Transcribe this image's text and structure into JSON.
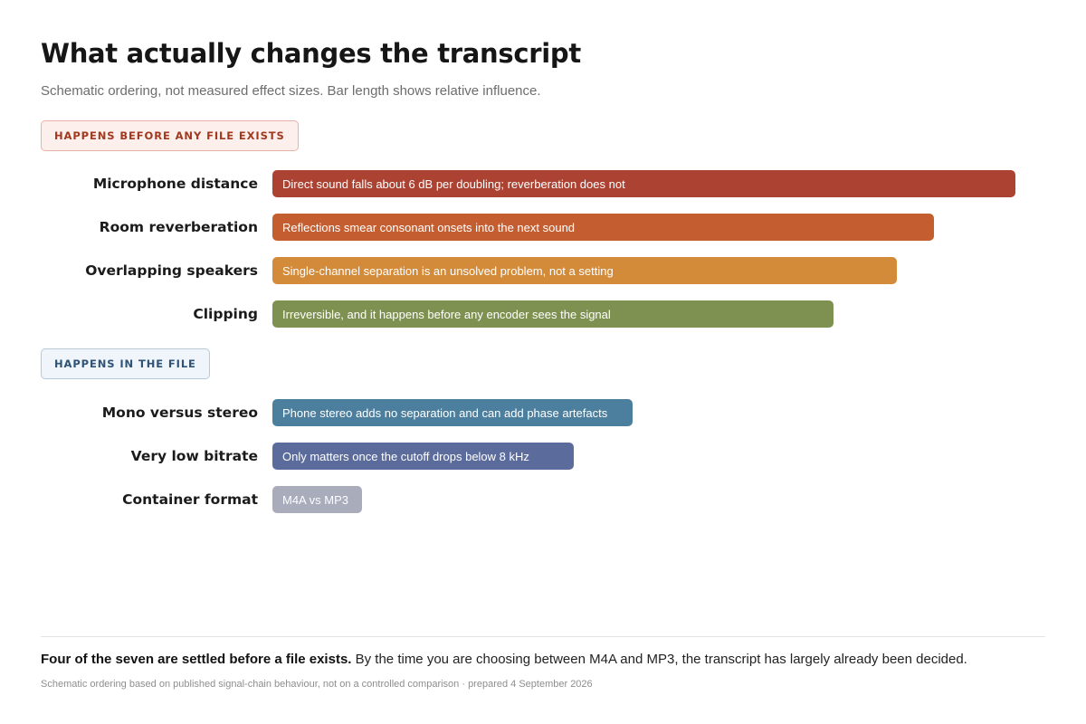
{
  "title": "What actually changes the transcript",
  "subtitle": "Schematic ordering, not measured effect sizes. Bar length shows relative influence.",
  "chart_data": {
    "type": "bar",
    "orientation": "horizontal",
    "value_meaning": "relative influence (schematic, not measured)",
    "groups": [
      {
        "label": "Happens before any file exists",
        "color": "#a0391f",
        "rows": [
          {
            "category": "Microphone distance",
            "value": 100,
            "annotation": "Direct sound falls about 6 dB per doubling; reverberation does not",
            "color": "#ab4232"
          },
          {
            "category": "Room reverberation",
            "value": 89,
            "annotation": "Reflections smear consonant onsets into the next sound",
            "color": "#c45d2f"
          },
          {
            "category": "Overlapping speakers",
            "value": 84,
            "annotation": "Single-channel separation is an unsolved problem, not a setting",
            "color": "#d38b3a"
          },
          {
            "category": "Clipping",
            "value": 75.5,
            "annotation": "Irreversible, and it happens before any encoder sees the signal",
            "color": "#7e9150"
          }
        ]
      },
      {
        "label": "Happens in the file",
        "color": "#2e5376",
        "rows": [
          {
            "category": "Mono versus stereo",
            "value": 48.5,
            "annotation": "Phone stereo adds no separation and can add phase artefacts",
            "color": "#4c7f9e"
          },
          {
            "category": "Very low bitrate",
            "value": 40.5,
            "annotation": "Only matters once the cutoff drops below 8 kHz",
            "color": "#5b6c9c"
          },
          {
            "category": "Container format",
            "value": 12,
            "annotation": "M4A vs MP3",
            "color": "#a8acbb"
          }
        ]
      }
    ]
  },
  "takeaway": {
    "bold": "Four of the seven are settled before a file exists.",
    "text": " By the time you are choosing between M4A and MP3, the transcript has largely already been decided."
  },
  "footnote": "Schematic ordering based on published signal-chain behaviour, not on a controlled comparison  ·  prepared 4 September 2026"
}
